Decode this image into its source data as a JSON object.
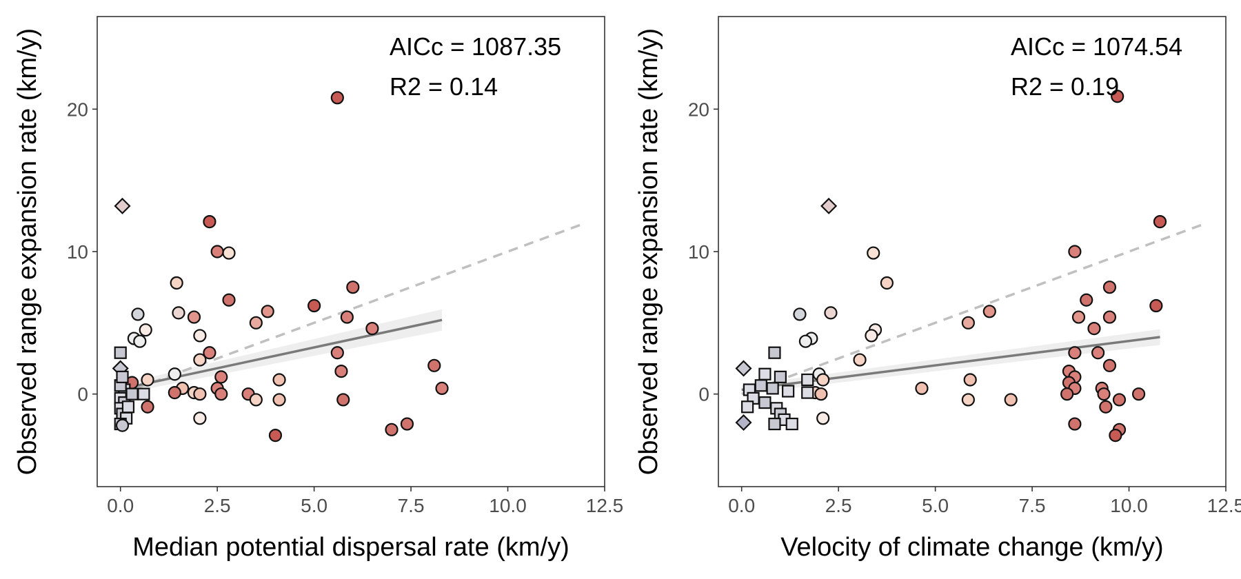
{
  "chart_data": [
    {
      "type": "scatter",
      "xlabel": "Median potential dispersal rate (km/y)",
      "ylabel": "Observed range expansion rate (km/y)",
      "xlim": [
        -0.6,
        12.5
      ],
      "ylim": [
        -6.5,
        26.5
      ],
      "xticks": [
        0.0,
        2.5,
        5.0,
        7.5,
        10.0,
        12.5
      ],
      "xtick_labels": [
        "0.0",
        "2.5",
        "5.0",
        "7.5",
        "10.0",
        "12.5"
      ],
      "yticks": [
        0,
        10,
        20
      ],
      "ytick_labels": [
        "0",
        "10",
        "20"
      ],
      "grid": false,
      "annotations": [
        "AICc = 1087.35",
        "R2 = 0.14"
      ],
      "fit_solid": {
        "x": [
          0.0,
          8.3
        ],
        "y": [
          0.35,
          5.2
        ],
        "ci_half_width": [
          0.35,
          0.75
        ]
      },
      "fit_dashed": {
        "x": [
          0.0,
          12.0
        ],
        "y": [
          0.0,
          12.0
        ]
      },
      "points": [
        {
          "x": 5.6,
          "y": 20.8,
          "shape": "circle",
          "color": "#c85a55"
        },
        {
          "x": 0.05,
          "y": 13.2,
          "shape": "diamond",
          "color": "#e3cccc"
        },
        {
          "x": 2.3,
          "y": 12.1,
          "shape": "circle",
          "color": "#c85a55"
        },
        {
          "x": 2.5,
          "y": 10.0,
          "shape": "circle",
          "color": "#d9807a"
        },
        {
          "x": 2.8,
          "y": 9.9,
          "shape": "circle",
          "color": "#f8e2d6"
        },
        {
          "x": 1.45,
          "y": 7.8,
          "shape": "circle",
          "color": "#f5d3c5"
        },
        {
          "x": 6.0,
          "y": 7.5,
          "shape": "circle",
          "color": "#d1736d"
        },
        {
          "x": 2.8,
          "y": 6.6,
          "shape": "circle",
          "color": "#d1736d"
        },
        {
          "x": 5.0,
          "y": 6.2,
          "shape": "circle",
          "color": "#c85a55"
        },
        {
          "x": 3.8,
          "y": 5.8,
          "shape": "circle",
          "color": "#e2958a"
        },
        {
          "x": 1.5,
          "y": 5.7,
          "shape": "circle",
          "color": "#ecd6d2"
        },
        {
          "x": 0.45,
          "y": 5.6,
          "shape": "circle",
          "color": "#d4d4dc"
        },
        {
          "x": 1.9,
          "y": 5.4,
          "shape": "circle",
          "color": "#e2958a"
        },
        {
          "x": 5.85,
          "y": 5.4,
          "shape": "circle",
          "color": "#d9807a"
        },
        {
          "x": 3.5,
          "y": 5.0,
          "shape": "circle",
          "color": "#e8aa9e"
        },
        {
          "x": 6.5,
          "y": 4.6,
          "shape": "circle",
          "color": "#d9807a"
        },
        {
          "x": 0.65,
          "y": 4.5,
          "shape": "circle",
          "color": "#f8eae4"
        },
        {
          "x": 2.05,
          "y": 4.1,
          "shape": "circle",
          "color": "#f8eae4"
        },
        {
          "x": 0.35,
          "y": 3.9,
          "shape": "circle",
          "color": "#eeeeee"
        },
        {
          "x": 0.5,
          "y": 3.7,
          "shape": "circle",
          "color": "#eeeeee"
        },
        {
          "x": 0.0,
          "y": 2.9,
          "shape": "square",
          "color": "#c8c8d2"
        },
        {
          "x": 2.3,
          "y": 2.9,
          "shape": "circle",
          "color": "#d9807a"
        },
        {
          "x": 5.6,
          "y": 2.9,
          "shape": "circle",
          "color": "#d9807a"
        },
        {
          "x": 2.05,
          "y": 2.4,
          "shape": "circle",
          "color": "#f5d3c5"
        },
        {
          "x": 8.1,
          "y": 2.0,
          "shape": "circle",
          "color": "#d1736d"
        },
        {
          "x": 5.7,
          "y": 1.6,
          "shape": "circle",
          "color": "#d9807a"
        },
        {
          "x": 1.4,
          "y": 1.4,
          "shape": "circle",
          "color": "#eeeeee"
        },
        {
          "x": 2.6,
          "y": 1.2,
          "shape": "circle",
          "color": "#d9807a"
        },
        {
          "x": 4.1,
          "y": 1.0,
          "shape": "circle",
          "color": "#f0c0b0"
        },
        {
          "x": 0.7,
          "y": 1.0,
          "shape": "circle",
          "color": "#f5d3c5"
        },
        {
          "x": 0.3,
          "y": 0.8,
          "shape": "circle",
          "color": "#d1736d"
        },
        {
          "x": 0.0,
          "y": 1.8,
          "shape": "diamond",
          "color": "#c8c8d2"
        },
        {
          "x": 1.6,
          "y": 0.4,
          "shape": "circle",
          "color": "#f0c0b0"
        },
        {
          "x": 2.5,
          "y": 0.4,
          "shape": "circle",
          "color": "#d9807a"
        },
        {
          "x": 8.3,
          "y": 0.4,
          "shape": "circle",
          "color": "#d9807a"
        },
        {
          "x": 1.4,
          "y": 0.1,
          "shape": "circle",
          "color": "#d1736d"
        },
        {
          "x": 1.9,
          "y": 0.1,
          "shape": "circle",
          "color": "#f5d3c5"
        },
        {
          "x": 2.05,
          "y": 0.0,
          "shape": "circle",
          "color": "#f0c0b0"
        },
        {
          "x": 2.6,
          "y": 0.0,
          "shape": "circle",
          "color": "#d9807a"
        },
        {
          "x": 3.3,
          "y": 0.0,
          "shape": "circle",
          "color": "#d9807a"
        },
        {
          "x": 0.6,
          "y": 0.0,
          "shape": "square",
          "color": "#dcdce4"
        },
        {
          "x": 0.1,
          "y": 0.3,
          "shape": "square",
          "color": "#dcdce4"
        },
        {
          "x": 0.0,
          "y": 0.6,
          "shape": "square",
          "color": "#c8c8d2"
        },
        {
          "x": 0.05,
          "y": 1.2,
          "shape": "square",
          "color": "#c8c8d2"
        },
        {
          "x": 0.0,
          "y": -0.3,
          "shape": "square",
          "color": "#dcdce4"
        },
        {
          "x": 0.1,
          "y": -0.6,
          "shape": "square",
          "color": "#c8c8d2"
        },
        {
          "x": 0.0,
          "y": -1.0,
          "shape": "square",
          "color": "#dcdce4"
        },
        {
          "x": 0.05,
          "y": -1.4,
          "shape": "square",
          "color": "#c8c8d2"
        },
        {
          "x": 0.15,
          "y": -1.7,
          "shape": "square",
          "color": "#dcdce4"
        },
        {
          "x": 0.0,
          "y": -2.1,
          "shape": "square",
          "color": "#c8c8d2"
        },
        {
          "x": 0.05,
          "y": -2.2,
          "shape": "circle",
          "color": "#c8c8d2"
        },
        {
          "x": 0.2,
          "y": -0.9,
          "shape": "square",
          "color": "#dcdce4"
        },
        {
          "x": 0.3,
          "y": 0.0,
          "shape": "square",
          "color": "#c8c8d2"
        },
        {
          "x": 0.7,
          "y": -0.9,
          "shape": "circle",
          "color": "#d1736d"
        },
        {
          "x": 3.5,
          "y": -0.4,
          "shape": "circle",
          "color": "#f5d3c5"
        },
        {
          "x": 4.1,
          "y": -0.4,
          "shape": "circle",
          "color": "#f0c0b0"
        },
        {
          "x": 5.75,
          "y": -0.4,
          "shape": "circle",
          "color": "#d1736d"
        },
        {
          "x": 2.05,
          "y": -1.7,
          "shape": "circle",
          "color": "#f8eae4"
        },
        {
          "x": 7.4,
          "y": -2.1,
          "shape": "circle",
          "color": "#d1736d"
        },
        {
          "x": 7.0,
          "y": -2.5,
          "shape": "circle",
          "color": "#d1736d"
        },
        {
          "x": 4.0,
          "y": -2.9,
          "shape": "circle",
          "color": "#c85a55"
        }
      ]
    },
    {
      "type": "scatter",
      "xlabel": "Velocity of climate change (km/y)",
      "ylabel": "Observed range expansion rate (km/y)",
      "xlim": [
        -0.6,
        12.5
      ],
      "ylim": [
        -6.5,
        26.5
      ],
      "xticks": [
        0.0,
        2.5,
        5.0,
        7.5,
        10.0,
        12.5
      ],
      "xtick_labels": [
        "0.0",
        "2.5",
        "5.0",
        "7.5",
        "10.0",
        "12.5"
      ],
      "yticks": [
        0,
        10,
        20
      ],
      "ytick_labels": [
        "0",
        "10",
        "20"
      ],
      "grid": false,
      "annotations": [
        "AICc = 1074.54",
        "R2 = 0.19"
      ],
      "fit_solid": {
        "x": [
          0.0,
          10.8
        ],
        "y": [
          0.3,
          4.0
        ],
        "ci_half_width": [
          0.3,
          0.55
        ]
      },
      "fit_dashed": {
        "x": [
          0.0,
          12.0
        ],
        "y": [
          0.0,
          12.0
        ]
      },
      "points": [
        {
          "x": 9.7,
          "y": 20.9,
          "shape": "circle",
          "color": "#c85a55"
        },
        {
          "x": 2.25,
          "y": 13.2,
          "shape": "diamond",
          "color": "#e3cccc"
        },
        {
          "x": 10.8,
          "y": 12.1,
          "shape": "circle",
          "color": "#c85a55"
        },
        {
          "x": 8.6,
          "y": 10.0,
          "shape": "circle",
          "color": "#d9807a"
        },
        {
          "x": 3.4,
          "y": 9.9,
          "shape": "circle",
          "color": "#f8e2d6"
        },
        {
          "x": 3.75,
          "y": 7.8,
          "shape": "circle",
          "color": "#f5d3c5"
        },
        {
          "x": 9.5,
          "y": 7.5,
          "shape": "circle",
          "color": "#d1736d"
        },
        {
          "x": 8.9,
          "y": 6.6,
          "shape": "circle",
          "color": "#d1736d"
        },
        {
          "x": 10.7,
          "y": 6.2,
          "shape": "circle",
          "color": "#c85a55"
        },
        {
          "x": 6.4,
          "y": 5.8,
          "shape": "circle",
          "color": "#e2958a"
        },
        {
          "x": 2.3,
          "y": 5.7,
          "shape": "circle",
          "color": "#ecd6d2"
        },
        {
          "x": 1.5,
          "y": 5.6,
          "shape": "circle",
          "color": "#d4d4dc"
        },
        {
          "x": 8.7,
          "y": 5.4,
          "shape": "circle",
          "color": "#e2958a"
        },
        {
          "x": 9.5,
          "y": 5.4,
          "shape": "circle",
          "color": "#d9807a"
        },
        {
          "x": 5.85,
          "y": 5.0,
          "shape": "circle",
          "color": "#e8aa9e"
        },
        {
          "x": 9.1,
          "y": 4.6,
          "shape": "circle",
          "color": "#d9807a"
        },
        {
          "x": 3.45,
          "y": 4.5,
          "shape": "circle",
          "color": "#f8eae4"
        },
        {
          "x": 3.35,
          "y": 4.1,
          "shape": "circle",
          "color": "#f8eae4"
        },
        {
          "x": 1.8,
          "y": 3.9,
          "shape": "circle",
          "color": "#eeeeee"
        },
        {
          "x": 1.65,
          "y": 3.7,
          "shape": "circle",
          "color": "#eeeeee"
        },
        {
          "x": 0.85,
          "y": 2.9,
          "shape": "square",
          "color": "#c8c8d2"
        },
        {
          "x": 8.6,
          "y": 2.9,
          "shape": "circle",
          "color": "#d9807a"
        },
        {
          "x": 9.2,
          "y": 2.9,
          "shape": "circle",
          "color": "#d9807a"
        },
        {
          "x": 3.05,
          "y": 2.4,
          "shape": "circle",
          "color": "#f5d3c5"
        },
        {
          "x": 9.5,
          "y": 2.0,
          "shape": "circle",
          "color": "#d1736d"
        },
        {
          "x": 8.45,
          "y": 1.6,
          "shape": "circle",
          "color": "#d9807a"
        },
        {
          "x": 2.0,
          "y": 1.4,
          "shape": "circle",
          "color": "#eeeeee"
        },
        {
          "x": 8.6,
          "y": 1.2,
          "shape": "circle",
          "color": "#d9807a"
        },
        {
          "x": 5.9,
          "y": 1.0,
          "shape": "circle",
          "color": "#f0c0b0"
        },
        {
          "x": 2.1,
          "y": 1.0,
          "shape": "circle",
          "color": "#f5d3c5"
        },
        {
          "x": 8.45,
          "y": 0.8,
          "shape": "circle",
          "color": "#d1736d"
        },
        {
          "x": 0.05,
          "y": 1.8,
          "shape": "diamond",
          "color": "#c8c8d2"
        },
        {
          "x": 0.6,
          "y": 1.4,
          "shape": "square",
          "color": "#dcdce4"
        },
        {
          "x": 1.0,
          "y": 1.2,
          "shape": "square",
          "color": "#c8c8d2"
        },
        {
          "x": 1.7,
          "y": 1.0,
          "shape": "square",
          "color": "#dcdce4"
        },
        {
          "x": 4.65,
          "y": 0.4,
          "shape": "circle",
          "color": "#f0c0b0"
        },
        {
          "x": 8.6,
          "y": 0.4,
          "shape": "circle",
          "color": "#d9807a"
        },
        {
          "x": 9.3,
          "y": 0.4,
          "shape": "circle",
          "color": "#d9807a"
        },
        {
          "x": 8.4,
          "y": 0.0,
          "shape": "circle",
          "color": "#d1736d"
        },
        {
          "x": 9.35,
          "y": 0.0,
          "shape": "circle",
          "color": "#d9807a"
        },
        {
          "x": 10.25,
          "y": 0.0,
          "shape": "circle",
          "color": "#d1736d"
        },
        {
          "x": 1.9,
          "y": 0.1,
          "shape": "circle",
          "color": "#f5d3c5"
        },
        {
          "x": 2.05,
          "y": 0.0,
          "shape": "circle",
          "color": "#f0c0b0"
        },
        {
          "x": 1.7,
          "y": 0.1,
          "shape": "square",
          "color": "#dcdce4"
        },
        {
          "x": 0.2,
          "y": 0.3,
          "shape": "square",
          "color": "#dcdce4"
        },
        {
          "x": 0.5,
          "y": 0.6,
          "shape": "square",
          "color": "#c8c8d2"
        },
        {
          "x": 0.8,
          "y": 0.4,
          "shape": "square",
          "color": "#c8c8d2"
        },
        {
          "x": 1.2,
          "y": 0.2,
          "shape": "square",
          "color": "#dcdce4"
        },
        {
          "x": 0.3,
          "y": -0.3,
          "shape": "square",
          "color": "#dcdce4"
        },
        {
          "x": 0.6,
          "y": -0.6,
          "shape": "square",
          "color": "#c8c8d2"
        },
        {
          "x": 0.9,
          "y": -1.0,
          "shape": "square",
          "color": "#dcdce4"
        },
        {
          "x": 1.0,
          "y": -1.4,
          "shape": "square",
          "color": "#c8c8d2"
        },
        {
          "x": 1.1,
          "y": -1.8,
          "shape": "square",
          "color": "#dcdce4"
        },
        {
          "x": 0.85,
          "y": -2.1,
          "shape": "square",
          "color": "#c8c8d2"
        },
        {
          "x": 1.3,
          "y": -2.1,
          "shape": "square",
          "color": "#dcdce4"
        },
        {
          "x": 0.05,
          "y": -2.0,
          "shape": "diamond",
          "color": "#b4b4c8"
        },
        {
          "x": 0.15,
          "y": -0.9,
          "shape": "square",
          "color": "#dcdce4"
        },
        {
          "x": 2.1,
          "y": -1.7,
          "shape": "circle",
          "color": "#f8eae4"
        },
        {
          "x": 5.85,
          "y": -0.4,
          "shape": "circle",
          "color": "#f5d3c5"
        },
        {
          "x": 6.95,
          "y": -0.4,
          "shape": "circle",
          "color": "#f0c0b0"
        },
        {
          "x": 9.75,
          "y": -0.4,
          "shape": "circle",
          "color": "#d1736d"
        },
        {
          "x": 9.4,
          "y": -0.9,
          "shape": "circle",
          "color": "#d1736d"
        },
        {
          "x": 8.6,
          "y": -2.1,
          "shape": "circle",
          "color": "#d1736d"
        },
        {
          "x": 9.75,
          "y": -2.5,
          "shape": "circle",
          "color": "#d1736d"
        },
        {
          "x": 9.65,
          "y": -2.9,
          "shape": "circle",
          "color": "#c85a55"
        }
      ]
    }
  ]
}
